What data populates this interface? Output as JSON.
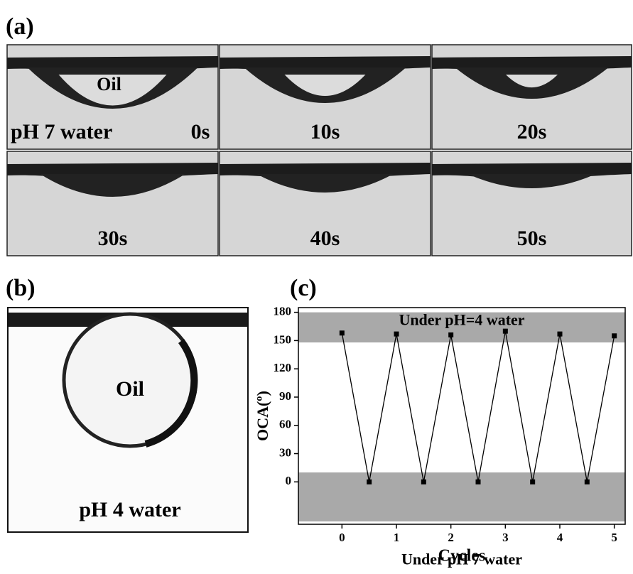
{
  "panel_a": {
    "label": "(a)",
    "frames": [
      {
        "time": "0s",
        "oil": "Oil",
        "medium": "pH 7 water"
      },
      {
        "time": "10s"
      },
      {
        "time": "20s"
      },
      {
        "time": "30s"
      },
      {
        "time": "40s"
      },
      {
        "time": "50s"
      }
    ]
  },
  "panel_b": {
    "label": "(b)",
    "oil": "Oil",
    "medium": "pH 4 water"
  },
  "panel_c": {
    "label": "(c)"
  },
  "chart_data": {
    "type": "line",
    "x_label": "Cycles",
    "y_label": "OCA(º)",
    "x": [
      0,
      0.5,
      1,
      1.5,
      2,
      2.5,
      3,
      3.5,
      4,
      4.5,
      5
    ],
    "series": [
      {
        "color": "#000000",
        "values": [
          158,
          0,
          157,
          0,
          156,
          0,
          160,
          0,
          157,
          0,
          155
        ]
      }
    ],
    "xlim": [
      -0.8,
      5.2
    ],
    "xticks": [
      0,
      1,
      2,
      3,
      4,
      5
    ],
    "ylim": [
      -45,
      185
    ],
    "yticks": [
      0,
      30,
      60,
      90,
      120,
      150,
      180
    ],
    "bands": [
      {
        "from": 148,
        "to": 180,
        "label": "Under pH=4 water",
        "color": "#a9a9a9"
      },
      {
        "from": -42,
        "to": 10,
        "label": "Under pH 7 water",
        "color": "#a9a9a9"
      }
    ]
  }
}
